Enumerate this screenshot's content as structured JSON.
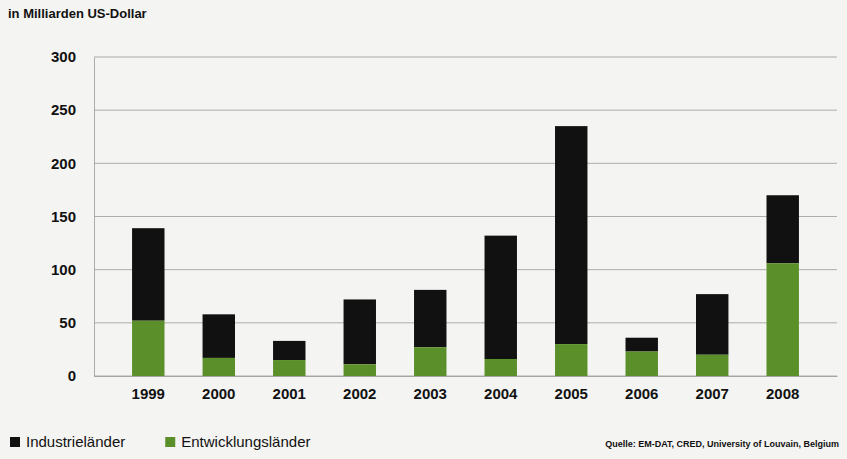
{
  "chart_data": {
    "type": "bar",
    "ylabel": "in Milliarden US-Dollar",
    "categories": [
      "1999",
      "2000",
      "2001",
      "2002",
      "2003",
      "2004",
      "2005",
      "2006",
      "2007",
      "2008"
    ],
    "series": [
      {
        "name": "Industrieländer",
        "color": "#111111",
        "values": [
          87,
          41,
          18,
          61,
          54,
          116,
          205,
          13,
          57,
          64
        ]
      },
      {
        "name": "Entwicklungsländer",
        "color": "#5a8f29",
        "values": [
          52,
          17,
          15,
          11,
          27,
          16,
          30,
          23,
          20,
          106
        ]
      }
    ],
    "stacked": true,
    "ylim": [
      0,
      300
    ],
    "yticks": [
      0,
      50,
      100,
      150,
      200,
      250,
      300
    ],
    "grid": true,
    "legend": "bottom-left",
    "annotations": [
      "Quelle: EM-DAT, CRED, University of Louvain, Belgium"
    ]
  }
}
